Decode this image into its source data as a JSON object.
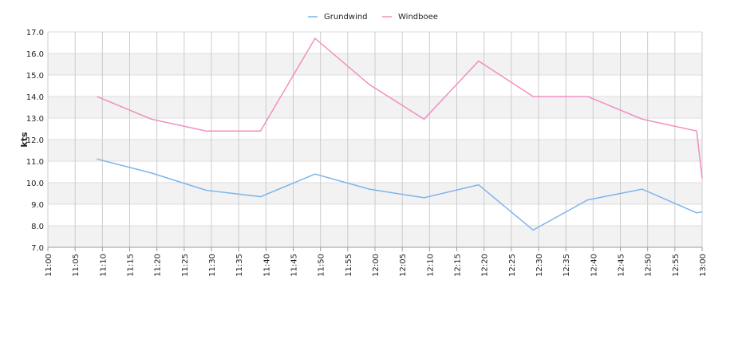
{
  "chart_data": {
    "type": "line",
    "y_label": "kts",
    "x": [
      "11:09",
      "11:19",
      "11:29",
      "11:39",
      "11:49",
      "11:59",
      "12:09",
      "12:19",
      "12:29",
      "12:39",
      "12:49",
      "12:59",
      "13:00"
    ],
    "series": [
      {
        "name": "Grundwind",
        "color": "#7cb5ec",
        "values": [
          11.1,
          10.45,
          9.65,
          9.35,
          10.4,
          9.7,
          9.3,
          9.9,
          7.8,
          9.2,
          9.7,
          8.6,
          8.65
        ]
      },
      {
        "name": "Windboee",
        "color": "#f08fc0",
        "values": [
          14.0,
          12.95,
          12.4,
          12.4,
          16.7,
          14.55,
          12.95,
          15.65,
          14.0,
          14.0,
          12.95,
          12.4,
          10.2
        ]
      }
    ],
    "xlim": [
      "11:00",
      "13:00"
    ],
    "xticks": [
      "11:00",
      "11:05",
      "11:10",
      "11:15",
      "11:20",
      "11:25",
      "11:30",
      "11:35",
      "11:40",
      "11:45",
      "11:50",
      "11:55",
      "12:00",
      "12:05",
      "12:10",
      "12:15",
      "12:20",
      "12:25",
      "12:30",
      "12:35",
      "12:40",
      "12:45",
      "12:50",
      "12:55",
      "13:00"
    ],
    "ylim": [
      7,
      17
    ],
    "yticks": [
      {
        "value": 7,
        "label": "7.0"
      },
      {
        "value": 8,
        "label": "8.0"
      },
      {
        "value": 9,
        "label": "9.0"
      },
      {
        "value": 10,
        "label": "10.0"
      },
      {
        "value": 11,
        "label": "11.0"
      },
      {
        "value": 12,
        "label": "12.0"
      },
      {
        "value": 13,
        "label": "13.0"
      },
      {
        "value": 14,
        "label": "14.0"
      },
      {
        "value": 15,
        "label": "15.0"
      },
      {
        "value": 16,
        "label": "16.0"
      },
      {
        "value": 17,
        "label": "17.0"
      }
    ],
    "grid": true,
    "legend": "top"
  }
}
